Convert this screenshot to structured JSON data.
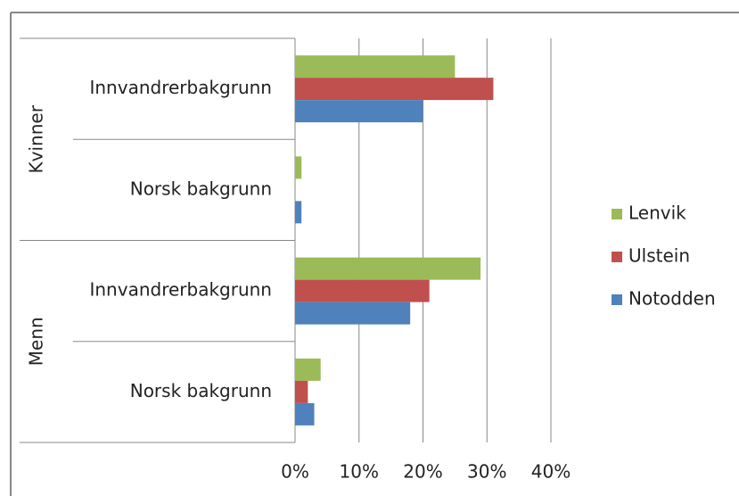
{
  "chart_data": {
    "type": "bar",
    "orientation": "horizontal",
    "groups": [
      {
        "name": "Kvinner",
        "categories": [
          "Innvandrerbakgrunn",
          "Norsk bakgrunn"
        ]
      },
      {
        "name": "Menn",
        "categories": [
          "Innvandrerbakgrunn",
          "Norsk bakgrunn"
        ]
      }
    ],
    "series": [
      {
        "name": "Lenvik",
        "color": "#9bbb59",
        "values": [
          25,
          1,
          29,
          4
        ]
      },
      {
        "name": "Ulstein",
        "color": "#c0504d",
        "values": [
          31,
          0,
          21,
          2
        ]
      },
      {
        "name": "Notodden",
        "color": "#4f81bd",
        "values": [
          20,
          1,
          18,
          3
        ]
      }
    ],
    "xlim": [
      0,
      40
    ],
    "xticks": [
      {
        "value": 0,
        "label": "0%"
      },
      {
        "value": 10,
        "label": "10%"
      },
      {
        "value": 20,
        "label": "20%"
      },
      {
        "value": 30,
        "label": "30%"
      },
      {
        "value": 40,
        "label": "40%"
      }
    ],
    "grid": true,
    "legend": "right"
  }
}
